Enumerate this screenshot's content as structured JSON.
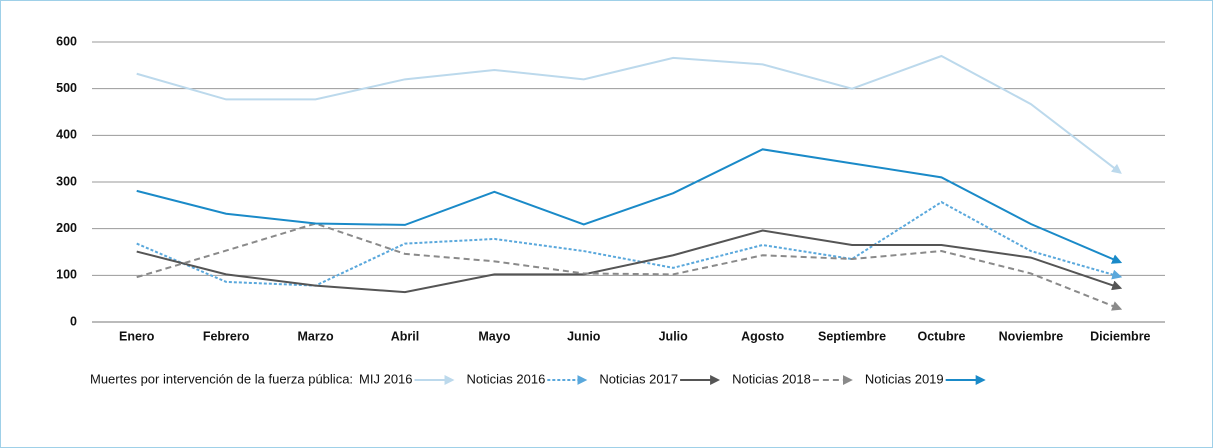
{
  "chart_data": {
    "type": "line",
    "legend_title": "Muertes por intervención de la fuerza pública:",
    "categories": [
      "Enero",
      "Febrero",
      "Marzo",
      "Abril",
      "Mayo",
      "Junio",
      "Julio",
      "Agosto",
      "Septiembre",
      "Octubre",
      "Noviembre",
      "Diciembre"
    ],
    "series": [
      {
        "name": "MIJ 2016",
        "color": "#bcd9ec",
        "style": "solid",
        "values": [
          532,
          477,
          477,
          520,
          540,
          520,
          566,
          552,
          500,
          570,
          467,
          320
        ]
      },
      {
        "name": "Noticias 2016",
        "color": "#5aa8dc",
        "style": "dotted",
        "values": [
          168,
          86,
          78,
          168,
          178,
          152,
          116,
          165,
          135,
          257,
          152,
          97
        ]
      },
      {
        "name": "Noticias 2017",
        "color": "#555555",
        "style": "solid",
        "values": [
          151,
          102,
          78,
          64,
          102,
          102,
          143,
          196,
          165,
          165,
          138,
          73
        ]
      },
      {
        "name": "Noticias 2018",
        "color": "#8a8a8a",
        "style": "dashed",
        "values": [
          96,
          153,
          211,
          146,
          130,
          104,
          102,
          143,
          135,
          152,
          104,
          28
        ]
      },
      {
        "name": "Noticias 2019",
        "color": "#1a8ac8",
        "style": "solid",
        "values": [
          281,
          232,
          211,
          208,
          279,
          209,
          276,
          370,
          340,
          310,
          210,
          128
        ]
      }
    ],
    "ylim": [
      0,
      600
    ],
    "yticks": [
      0,
      100,
      200,
      300,
      400,
      500,
      600
    ],
    "grid": true
  }
}
